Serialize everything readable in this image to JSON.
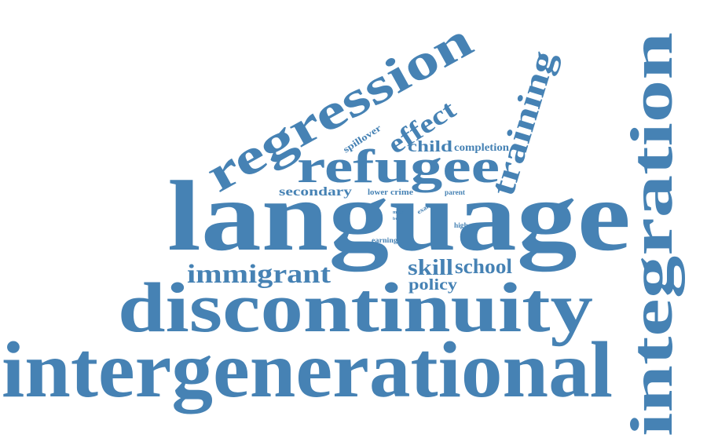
{
  "color": "#4682b4",
  "words": [
    {
      "key": "intergenerational",
      "text": "intergenerational"
    },
    {
      "key": "discontinuity",
      "text": "discontinuity"
    },
    {
      "key": "language",
      "text": "language"
    },
    {
      "key": "integration",
      "text": "integration"
    },
    {
      "key": "regression",
      "text": "regression"
    },
    {
      "key": "refugee",
      "text": "refugee"
    },
    {
      "key": "immigrant",
      "text": "immigrant"
    },
    {
      "key": "training",
      "text": "training"
    },
    {
      "key": "effect",
      "text": "effect"
    },
    {
      "key": "skill",
      "text": "skill"
    },
    {
      "key": "school",
      "text": "school"
    },
    {
      "key": "policy",
      "text": "policy"
    },
    {
      "key": "child",
      "text": "child"
    },
    {
      "key": "completion",
      "text": "completion"
    },
    {
      "key": "secondary",
      "text": "secondary"
    },
    {
      "key": "spillover",
      "text": "spillover"
    },
    {
      "key": "lower",
      "text": "lower"
    },
    {
      "key": "crime",
      "text": "crime"
    },
    {
      "key": "parent",
      "text": "parent"
    },
    {
      "key": "higher",
      "text": "higher"
    },
    {
      "key": "earning",
      "text": "earning"
    },
    {
      "key": "exam",
      "text": "exam"
    },
    {
      "key": "fall",
      "text": "fall"
    },
    {
      "key": "more",
      "text": "more"
    },
    {
      "key": "buy",
      "text": "buy"
    }
  ]
}
